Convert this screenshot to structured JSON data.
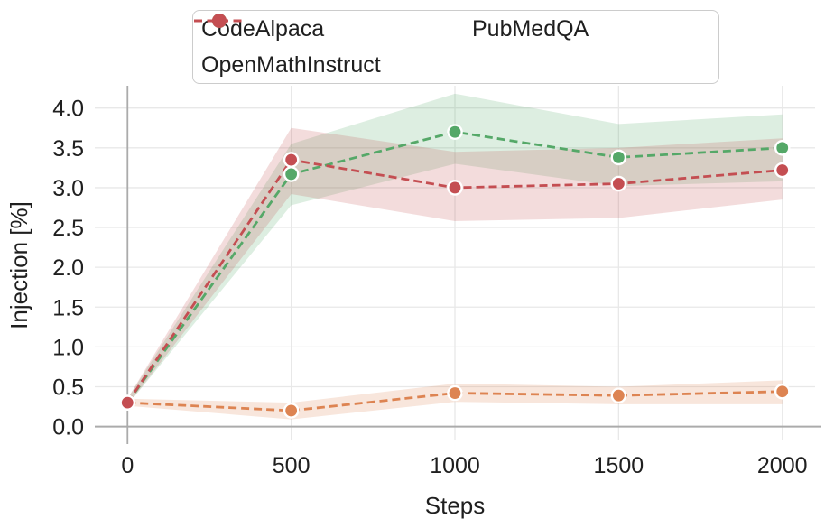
{
  "figure": {
    "background": "#ffffff"
  },
  "chart_data": {
    "type": "line",
    "title": "",
    "xlabel": "Steps",
    "ylabel": "Injection [%]",
    "x": [
      0,
      500,
      1000,
      1500,
      2000
    ],
    "xtick_labels": [
      "0",
      "500",
      "1000",
      "1500",
      "2000"
    ],
    "ytick_values": [
      0,
      0.5,
      1.0,
      1.5,
      2.0,
      2.5,
      3.0,
      3.5,
      4.0
    ],
    "ytick_labels": [
      "0.0",
      "0.5",
      "1.0",
      "1.5",
      "2.0",
      "2.5",
      "3.0",
      "3.5",
      "4.0"
    ],
    "xlim": [
      -100,
      2100
    ],
    "ylim": [
      -0.22,
      4.28
    ],
    "grid": true,
    "legend_position": "top-center",
    "line_style": "dashed",
    "band_opacity": 0.2,
    "grid_color": "#e8e8e8",
    "axis_line_color": "#ababab",
    "text_color": "#1f1f1f",
    "series": [
      {
        "name": "CodeAlpaca",
        "color": "#dd8452",
        "values": [
          0.3,
          0.2,
          0.42,
          0.39,
          0.44
        ],
        "band_lower": [
          0.26,
          0.09,
          0.31,
          0.28,
          0.28
        ],
        "band_upper": [
          0.35,
          0.3,
          0.54,
          0.5,
          0.58
        ]
      },
      {
        "name": "OpenMathInstruct",
        "color": "#55a868",
        "values": [
          0.3,
          3.17,
          3.7,
          3.38,
          3.5
        ],
        "band_lower": [
          0.27,
          2.78,
          3.3,
          3.02,
          3.08
        ],
        "band_upper": [
          0.35,
          3.55,
          4.18,
          3.8,
          3.92
        ]
      },
      {
        "name": "PubMedQA",
        "color": "#c44e52",
        "values": [
          0.3,
          3.35,
          3.0,
          3.05,
          3.22
        ],
        "band_lower": [
          0.27,
          2.92,
          2.58,
          2.62,
          2.85
        ],
        "band_upper": [
          0.35,
          3.75,
          3.45,
          3.5,
          3.62
        ]
      }
    ]
  },
  "legend": {
    "items": [
      {
        "label": "CodeAlpaca",
        "color": "#dd8452"
      },
      {
        "label": "OpenMathInstruct",
        "color": "#55a868"
      },
      {
        "label": "PubMedQA",
        "color": "#c44e52"
      }
    ]
  }
}
